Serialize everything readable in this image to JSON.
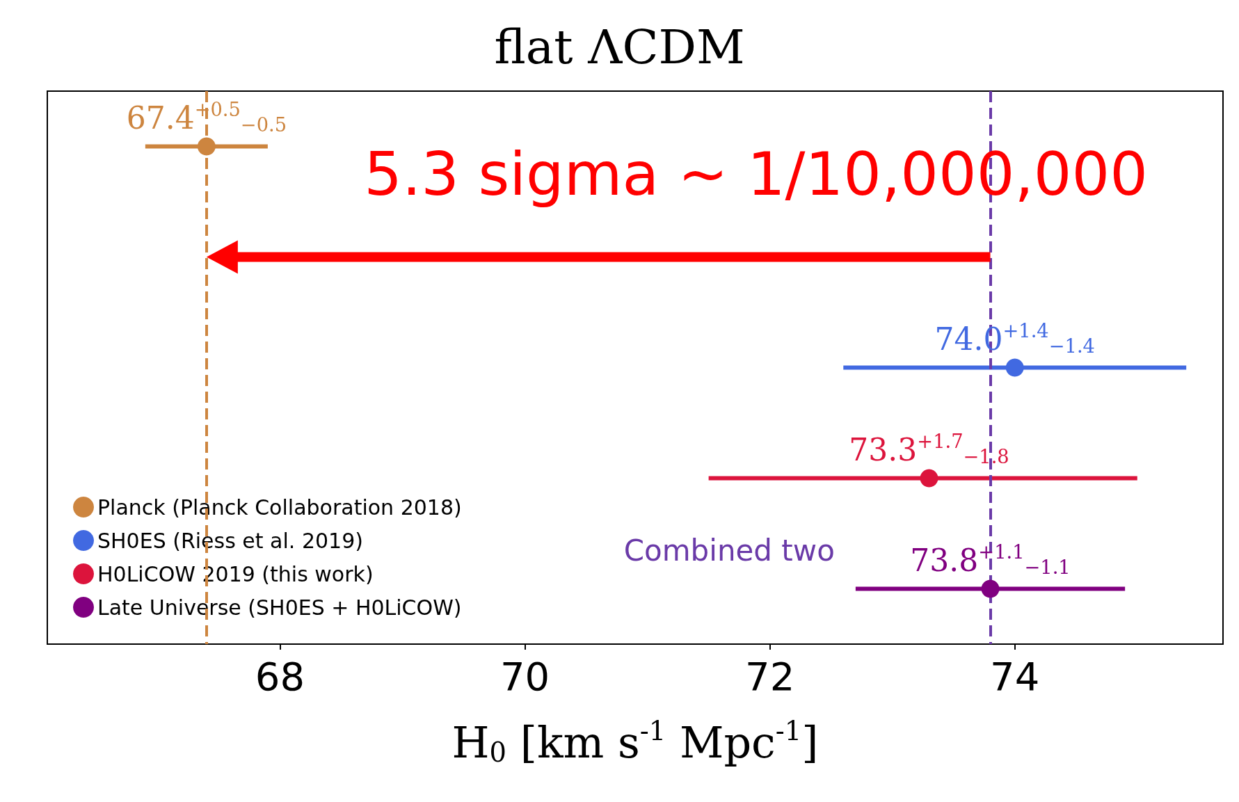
{
  "chart_data": {
    "type": "scatter",
    "orientation": "horizontal",
    "title": "flat ΛCDM",
    "xlabel": "H$_{0}$ [km s$^{-1}$ Mpc$^{-1}$]",
    "categories": [
      null,
      null,
      null,
      null,
      null
    ],
    "series": [
      {
        "name": "Planck (Planck Collaboration 2018)",
        "color": "#cd853f",
        "values": [
          67.4,
          null,
          null,
          null,
          null
        ],
        "errors": [
          [
            66.9,
            67.9
          ],
          null,
          null,
          null,
          null
        ],
        "value_labels": [
          "67.4$^{+0.5}$$_{−0.5}$",
          null,
          null,
          null,
          null
        ]
      },
      {
        "name": "SH0ES (Riess et al. 2019)",
        "color": "#4169e1",
        "values": [
          null,
          null,
          74.0,
          null,
          null
        ],
        "errors": [
          null,
          null,
          [
            72.6,
            75.4
          ],
          null,
          null
        ],
        "value_labels": [
          null,
          null,
          "74.0$^{+1.4}$$_{−1.4}$",
          null,
          null
        ]
      },
      {
        "name": "H0LiCOW 2019 (this work)",
        "color": "#dc143c",
        "values": [
          null,
          null,
          null,
          73.3,
          null
        ],
        "errors": [
          null,
          null,
          null,
          [
            71.5,
            75.0
          ],
          null
        ],
        "value_labels": [
          null,
          null,
          null,
          "73.3$^{+1.7}$$_{−1.8}$",
          null
        ]
      },
      {
        "name": "Late Universe (SH0ES + H0LiCOW)",
        "color": "#800080",
        "values": [
          null,
          null,
          null,
          null,
          73.8
        ],
        "errors": [
          null,
          null,
          null,
          null,
          [
            72.7,
            74.9
          ]
        ],
        "value_labels": [
          null,
          null,
          null,
          null,
          "73.8$^{+1.1}$$_{−1.1}$"
        ]
      }
    ],
    "xlim": [
      66.1,
      75.7
    ],
    "xticks": [
      68,
      70,
      72,
      74
    ],
    "ref_lines": [
      {
        "axis": "x",
        "value": 67.4,
        "color": "#cd853f",
        "line_style": "dashed"
      },
      {
        "axis": "x",
        "value": 73.8,
        "color": "#6a3aa8",
        "line_style": "dashed"
      }
    ],
    "annotations": [
      "5.3 sigma ~ 1/10,000,000",
      "Combined two"
    ],
    "legend": "bottom left",
    "marker": "circle",
    "grid": false,
    "tick_labels": "x"
  }
}
